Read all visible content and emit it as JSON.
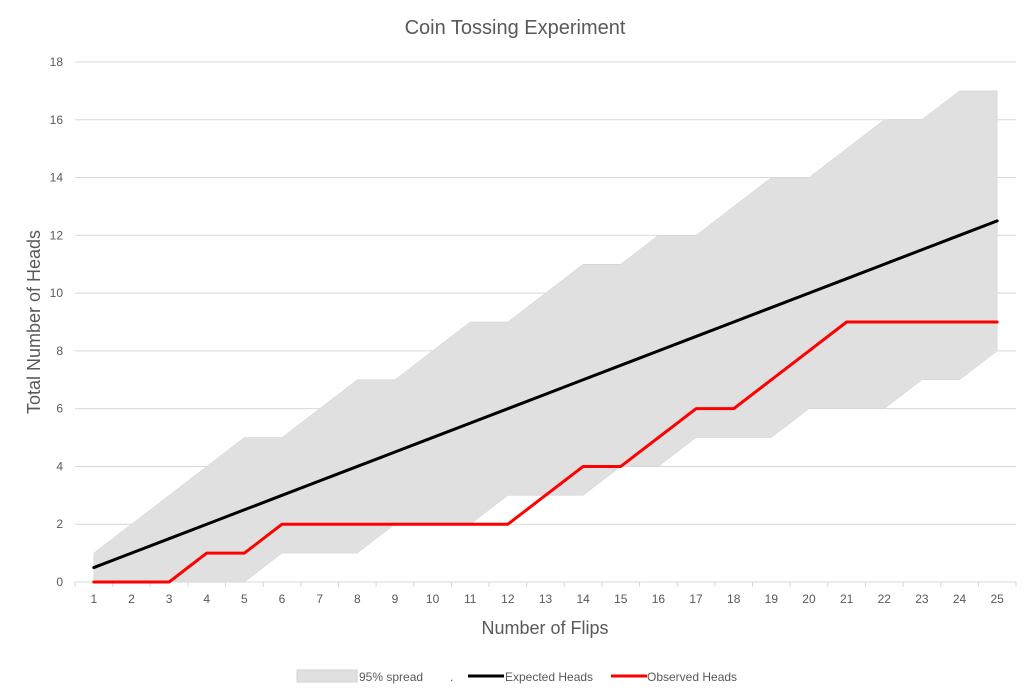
{
  "chart_data": {
    "type": "line",
    "title": "Coin Tossing Experiment",
    "xlabel": "Number of Flips",
    "ylabel": "Total Number of Heads",
    "x": [
      1,
      2,
      3,
      4,
      5,
      6,
      7,
      8,
      9,
      10,
      11,
      12,
      13,
      14,
      15,
      16,
      17,
      18,
      19,
      20,
      21,
      22,
      23,
      24,
      25
    ],
    "ylim": [
      0,
      18
    ],
    "yticks": [
      0,
      2,
      4,
      6,
      8,
      10,
      12,
      14,
      16,
      18
    ],
    "grid": true,
    "legend_position": "bottom",
    "band": {
      "name": "95% spread",
      "lower": [
        0,
        0,
        0,
        0,
        0,
        1,
        1,
        1,
        2,
        2,
        2,
        3,
        3,
        3,
        4,
        4,
        5,
        5,
        5,
        6,
        6,
        6,
        7,
        7,
        8
      ],
      "upper": [
        1,
        2,
        3,
        4,
        5,
        5,
        6,
        7,
        7,
        8,
        9,
        9,
        10,
        11,
        11,
        12,
        12,
        13,
        14,
        14,
        15,
        16,
        16,
        17,
        17
      ],
      "color": "#e0e0e0"
    },
    "series": [
      {
        "name": "Expected Heads",
        "color": "#000000",
        "values": [
          0.5,
          1,
          1.5,
          2,
          2.5,
          3,
          3.5,
          4,
          4.5,
          5,
          5.5,
          6,
          6.5,
          7,
          7.5,
          8,
          8.5,
          9,
          9.5,
          10,
          10.5,
          11,
          11.5,
          12,
          12.5
        ]
      },
      {
        "name": "Observed Heads",
        "color": "#ff0000",
        "values": [
          0,
          0,
          0,
          1,
          1,
          2,
          2,
          2,
          2,
          2,
          2,
          2,
          3,
          4,
          4,
          5,
          6,
          6,
          7,
          8,
          9,
          9,
          9,
          9,
          9
        ]
      }
    ],
    "legend_separator": "."
  }
}
